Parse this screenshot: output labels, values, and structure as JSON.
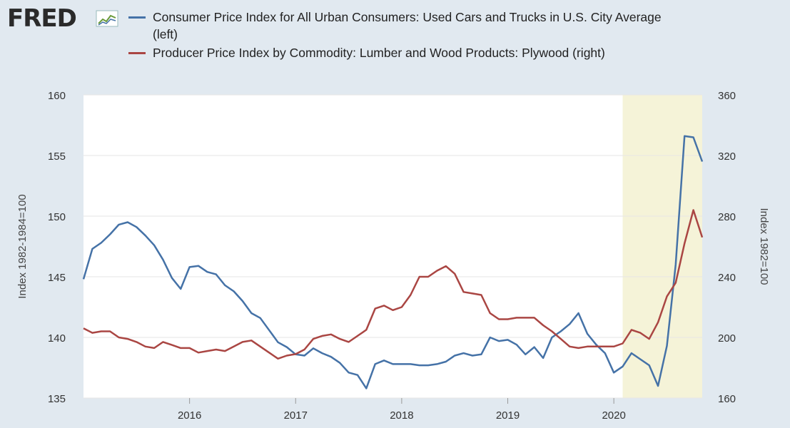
{
  "logo": {
    "text": "FRED",
    "mark_icon": "line-chart-icon"
  },
  "chart_data": {
    "type": "line",
    "title": "",
    "xlabel": "",
    "ylabel": "Index 1982-1984=100",
    "y2label": "Index 1982=100",
    "ylim": [
      135,
      160
    ],
    "y2lim": [
      160,
      360
    ],
    "yticks": [
      135,
      140,
      145,
      150,
      155,
      160
    ],
    "y2ticks": [
      160,
      200,
      240,
      280,
      320,
      360
    ],
    "xlim": [
      "2015-01",
      "2020-11"
    ],
    "xticks": [
      "2016",
      "2017",
      "2018",
      "2019",
      "2020"
    ],
    "grid": true,
    "legend_position": "top",
    "shaded_region": {
      "start": "2020-02",
      "end": "2020-11",
      "color": "#f5f3d8"
    },
    "x": [
      "2015-01",
      "2015-02",
      "2015-03",
      "2015-04",
      "2015-05",
      "2015-06",
      "2015-07",
      "2015-08",
      "2015-09",
      "2015-10",
      "2015-11",
      "2015-12",
      "2016-01",
      "2016-02",
      "2016-03",
      "2016-04",
      "2016-05",
      "2016-06",
      "2016-07",
      "2016-08",
      "2016-09",
      "2016-10",
      "2016-11",
      "2016-12",
      "2017-01",
      "2017-02",
      "2017-03",
      "2017-04",
      "2017-05",
      "2017-06",
      "2017-07",
      "2017-08",
      "2017-09",
      "2017-10",
      "2017-11",
      "2017-12",
      "2018-01",
      "2018-02",
      "2018-03",
      "2018-04",
      "2018-05",
      "2018-06",
      "2018-07",
      "2018-08",
      "2018-09",
      "2018-10",
      "2018-11",
      "2018-12",
      "2019-01",
      "2019-02",
      "2019-03",
      "2019-04",
      "2019-05",
      "2019-06",
      "2019-07",
      "2019-08",
      "2019-09",
      "2019-10",
      "2019-11",
      "2019-12",
      "2020-01",
      "2020-02",
      "2020-03",
      "2020-04",
      "2020-05",
      "2020-06",
      "2020-07",
      "2020-08",
      "2020-09",
      "2020-10",
      "2020-11"
    ],
    "series": [
      {
        "name": "Consumer Price Index for All Urban Consumers: Used Cars and Trucks in U.S. City Average (left)",
        "axis": "left",
        "color": "#4572a7",
        "values": [
          144.8,
          147.3,
          147.8,
          148.5,
          149.3,
          149.5,
          149.1,
          148.4,
          147.6,
          146.4,
          144.9,
          144.0,
          145.8,
          145.9,
          145.4,
          145.2,
          144.3,
          143.8,
          143.0,
          142.0,
          141.6,
          140.6,
          139.6,
          139.2,
          138.6,
          138.5,
          139.1,
          138.7,
          138.4,
          137.9,
          137.1,
          136.9,
          135.8,
          137.8,
          138.1,
          137.8,
          137.8,
          137.8,
          137.7,
          137.7,
          137.8,
          138.0,
          138.5,
          138.7,
          138.5,
          138.6,
          140.0,
          139.7,
          139.8,
          139.4,
          138.6,
          139.2,
          138.3,
          140.0,
          140.5,
          141.1,
          142.0,
          140.3,
          139.4,
          138.7,
          137.1,
          137.6,
          138.7,
          138.2,
          137.7,
          136.0,
          139.3,
          146.0,
          156.6,
          156.5,
          154.5
        ]
      },
      {
        "name": "Producer Price Index by Commodity: Lumber and Wood Products: Plywood (right)",
        "axis": "right",
        "color": "#aa4643",
        "values": [
          206,
          203,
          204,
          204,
          200,
          199,
          197,
          194,
          193,
          197,
          195,
          193,
          193,
          190,
          191,
          192,
          191,
          194,
          197,
          198,
          194,
          190,
          186,
          188,
          189,
          192,
          199,
          201,
          202,
          199,
          197,
          201,
          205,
          219,
          221,
          218,
          220,
          228,
          240,
          240,
          244,
          247,
          242,
          230,
          229,
          228,
          216,
          212,
          212,
          213,
          213,
          213,
          208,
          204,
          199,
          194,
          193,
          194,
          194,
          194,
          194,
          196,
          205,
          203,
          199,
          210,
          227,
          236,
          262,
          284,
          266
        ]
      }
    ]
  }
}
